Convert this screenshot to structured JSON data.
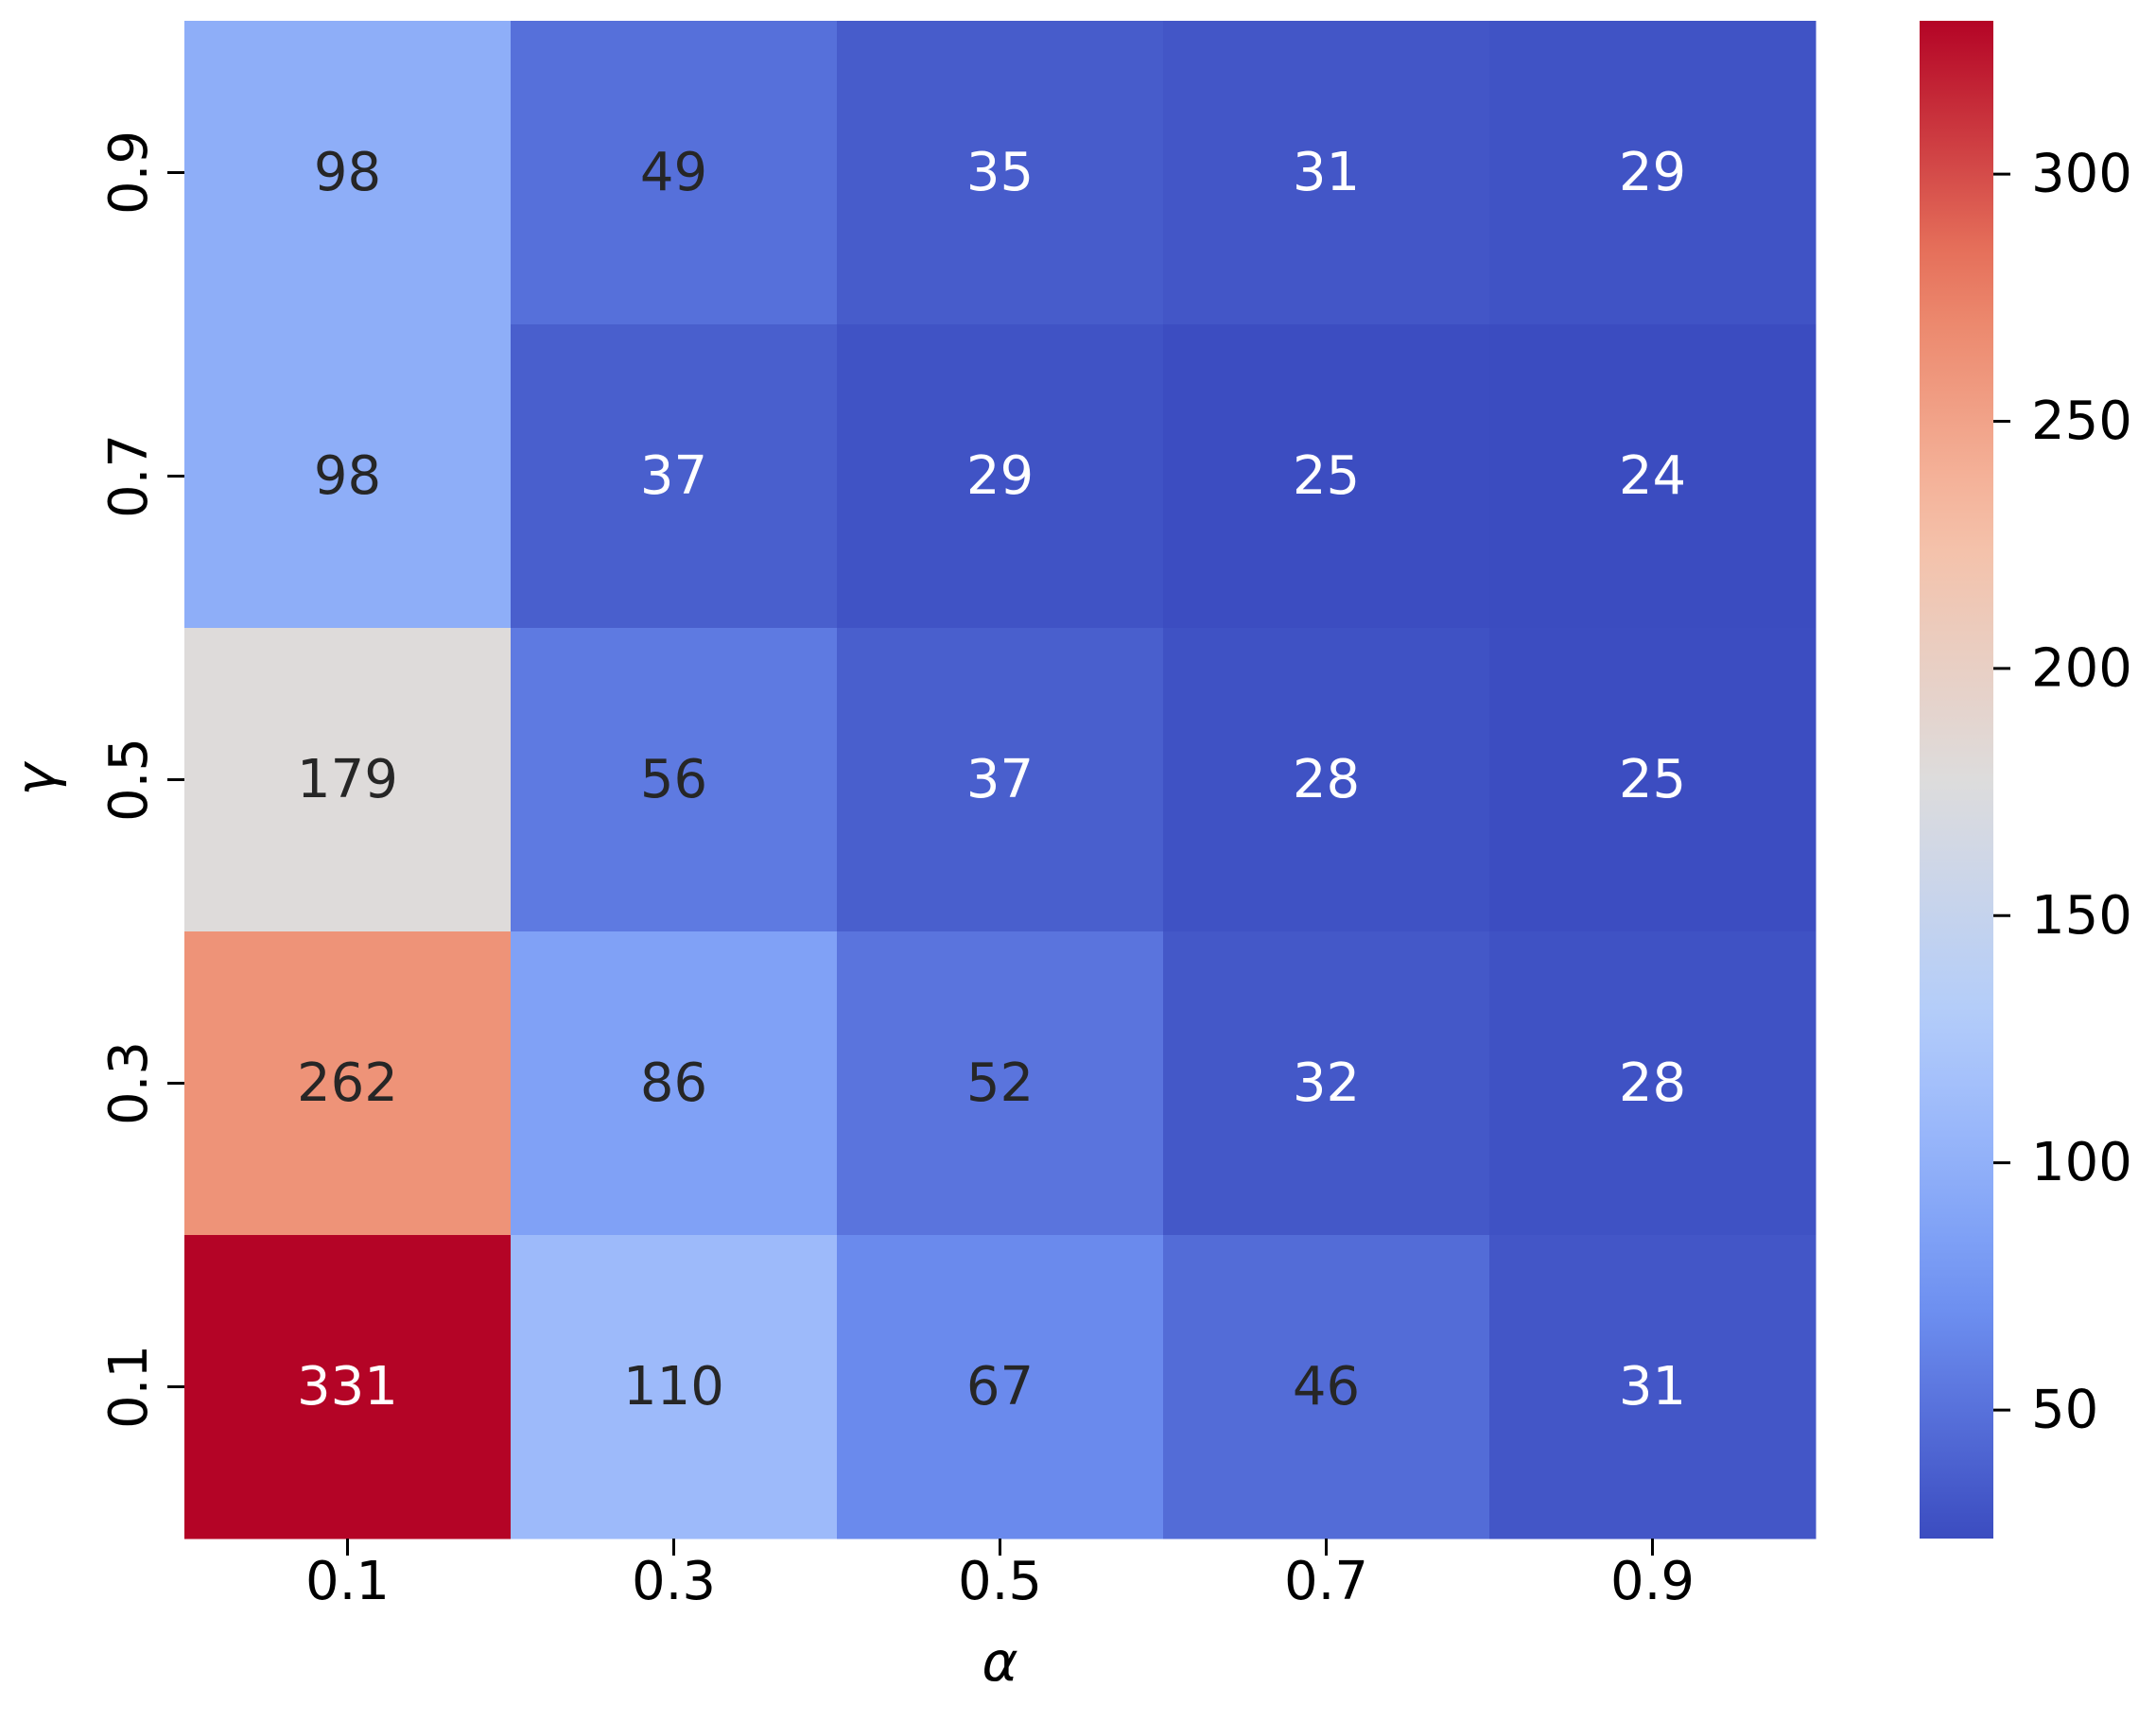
{
  "chart_data": {
    "type": "heatmap",
    "title": "",
    "xlabel": "α",
    "ylabel": "γ",
    "x_categories": [
      "0.1",
      "0.3",
      "0.5",
      "0.7",
      "0.9"
    ],
    "y_categories": [
      "0.9",
      "0.7",
      "0.5",
      "0.3",
      "0.1"
    ],
    "values": [
      [
        98,
        49,
        35,
        31,
        29
      ],
      [
        98,
        37,
        29,
        25,
        24
      ],
      [
        179,
        56,
        37,
        28,
        25
      ],
      [
        262,
        86,
        52,
        32,
        28
      ],
      [
        331,
        110,
        67,
        46,
        31
      ]
    ],
    "cell_labels": [
      [
        "98",
        "49",
        "35",
        "31",
        "29"
      ],
      [
        "98",
        "37",
        "29",
        "25",
        "24"
      ],
      [
        "179",
        "56",
        "37",
        "28",
        "25"
      ],
      [
        "262",
        "86",
        "52",
        "32",
        "28"
      ],
      [
        "331",
        "110",
        "67",
        "46",
        "31"
      ]
    ],
    "colormap": "coolwarm",
    "colormap_stops": [
      "#3b4cc0",
      "#7396f5",
      "#b0cbfc",
      "#dddcdc",
      "#f6bfa6",
      "#ea7b60",
      "#b40426"
    ],
    "colorbar": {
      "vmin": 24,
      "vmax": 331,
      "ticks": [
        50,
        100,
        150,
        200,
        250,
        300
      ],
      "tick_labels": [
        "50",
        "100",
        "150",
        "200",
        "250",
        "300"
      ]
    },
    "text_colors": {
      "light": "#ffffff",
      "dark": "#262626"
    }
  }
}
